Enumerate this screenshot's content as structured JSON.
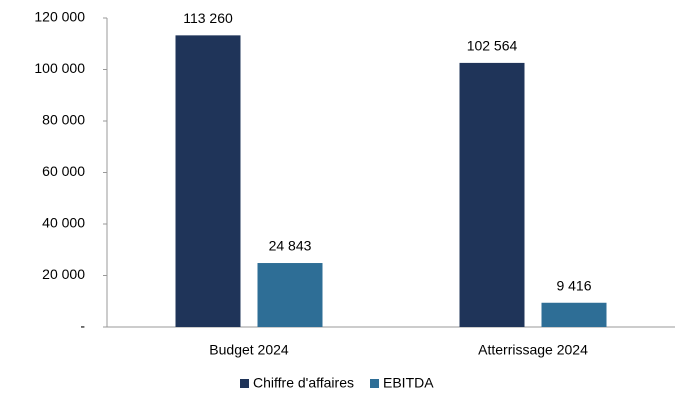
{
  "chart_data": {
    "type": "bar",
    "categories": [
      "Budget 2024",
      "Atterrissage 2024"
    ],
    "series": [
      {
        "name": "Chiffre d'affaires",
        "color": "#1f3459",
        "values": [
          113260,
          102564
        ],
        "value_labels": [
          "113 260",
          "102 564"
        ]
      },
      {
        "name": "EBITDA",
        "color": "#2e6e96",
        "values": [
          24843,
          9416
        ],
        "value_labels": [
          "24 843",
          "9 416"
        ]
      }
    ],
    "ylim": [
      0,
      120000
    ],
    "yticks": [
      {
        "value": 0,
        "label": "-"
      },
      {
        "value": 20000,
        "label": "20 000"
      },
      {
        "value": 40000,
        "label": "40 000"
      },
      {
        "value": 60000,
        "label": "60 000"
      },
      {
        "value": 80000,
        "label": "80 000"
      },
      {
        "value": 100000,
        "label": "100 000"
      },
      {
        "value": 120000,
        "label": "120 000"
      }
    ],
    "grid": false,
    "legend": "bottom"
  }
}
